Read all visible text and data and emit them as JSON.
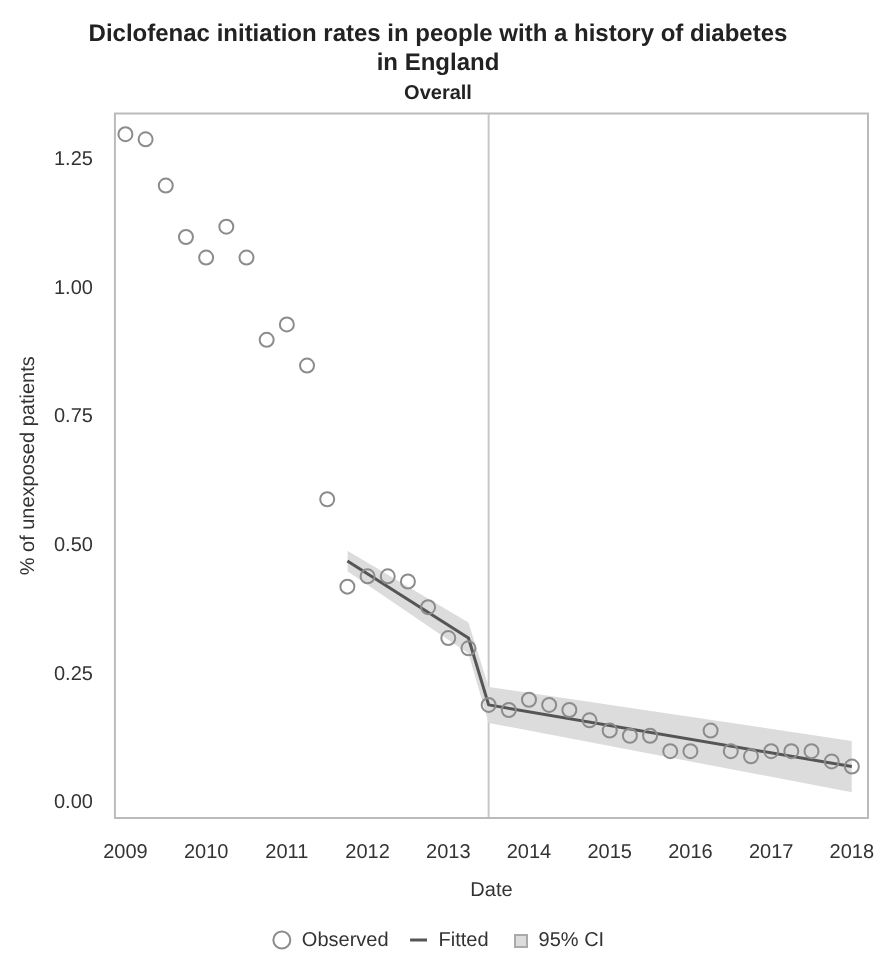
{
  "chart_data": {
    "type": "scatter",
    "title": "Diclofenac initiation rates in people with a history of diabetes in England",
    "subtitle": "Overall",
    "xlabel": "Date",
    "ylabel": "% of unexposed patients",
    "xlim": [
      2008.87,
      2018.2
    ],
    "xticks": [
      2009,
      2010,
      2011,
      2012,
      2013,
      2014,
      2015,
      2016,
      2017,
      2018
    ],
    "ylim": [
      -0.03,
      1.34
    ],
    "yticks": [
      {
        "value": 0,
        "label": "0.00"
      },
      {
        "value": 0.25,
        "label": "0.25"
      },
      {
        "value": 0.5,
        "label": "0.50"
      },
      {
        "value": 0.75,
        "label": "0.75"
      },
      {
        "value": 1,
        "label": "1.00"
      },
      {
        "value": 1.25,
        "label": "1.25"
      }
    ],
    "grid": false,
    "legend": "bottom",
    "annotations": [
      "95% CI"
    ],
    "ref_lines": [
      {
        "axis": "x",
        "value": 2013.5,
        "color": "#c8c8c8"
      }
    ],
    "series": [
      {
        "name": "Observed",
        "marker": "circle",
        "color": "#8c8c8c",
        "x": [
          2009,
          2009.25,
          2009.5,
          2009.75,
          2010,
          2010.25,
          2010.5,
          2010.75,
          2011,
          2011.25,
          2011.5,
          2011.75,
          2012,
          2012.25,
          2012.5,
          2012.75,
          2013,
          2013.25,
          2013.5,
          2013.75,
          2014,
          2014.25,
          2014.5,
          2014.75,
          2015,
          2015.25,
          2015.5,
          2015.75,
          2016,
          2016.25,
          2016.5,
          2016.75,
          2017,
          2017.25,
          2017.5,
          2017.75,
          2018
        ],
        "values": [
          1.3,
          1.29,
          1.2,
          1.1,
          1.06,
          1.12,
          1.06,
          0.9,
          0.93,
          0.85,
          0.59,
          0.42,
          0.44,
          0.44,
          0.43,
          0.38,
          0.32,
          0.3,
          0.19,
          0.18,
          0.2,
          0.19,
          0.18,
          0.16,
          0.14,
          0.13,
          0.13,
          0.1,
          0.1,
          0.14,
          0.1,
          0.09,
          0.1,
          0.1,
          0.1,
          0.08,
          0.07
        ]
      },
      {
        "name": "Fitted",
        "type": "line",
        "color": "#555555",
        "x": [
          2011.75,
          2013.25,
          2013.5,
          2018
        ],
        "values": [
          0.47,
          0.32,
          0.19,
          0.07
        ],
        "lower": [
          0.45,
          0.29,
          0.155,
          0.02
        ],
        "upper": [
          0.49,
          0.35,
          0.225,
          0.12
        ]
      }
    ]
  }
}
